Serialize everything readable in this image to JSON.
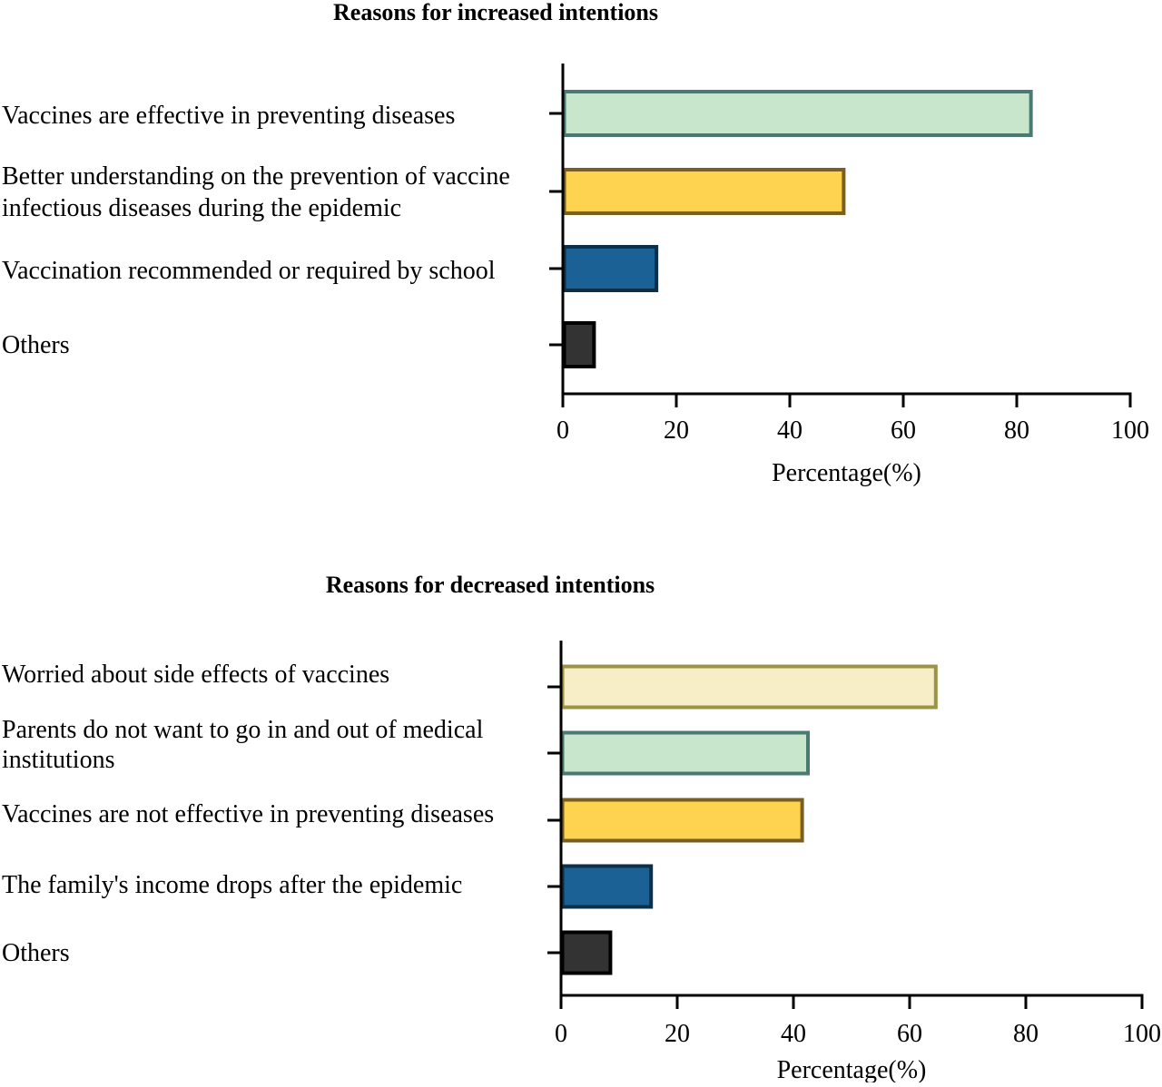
{
  "chart_data": [
    {
      "type": "bar",
      "orientation": "horizontal",
      "title": "Reasons for increased intentions",
      "xlabel": "Percentage(%)",
      "ylabel": "",
      "xlim": [
        0,
        100
      ],
      "xticks": [
        "0",
        "20",
        "40",
        "60",
        "80",
        "100"
      ],
      "categories": [
        [
          "Vaccines are effective in preventing diseases"
        ],
        [
          "Better understanding on the prevention of vaccine",
          "infectious diseases during the epidemic"
        ],
        [
          "Vaccination recommended or required by school"
        ],
        [
          "Others"
        ]
      ],
      "values": [
        82.5,
        49.5,
        16.5,
        5.5
      ],
      "colors": [
        {
          "fill": "#c8e6cb",
          "stroke": "#4b7a72"
        },
        {
          "fill": "#fdd34f",
          "stroke": "#7a5f22"
        },
        {
          "fill": "#1c6195",
          "stroke": "#0d2f47"
        },
        {
          "fill": "#333333",
          "stroke": "#000000"
        }
      ],
      "grid": false,
      "legend": "none"
    },
    {
      "type": "bar",
      "orientation": "horizontal",
      "title": "Reasons for decreased intentions",
      "xlabel": "Percentage(%)",
      "ylabel": "",
      "xlim": [
        0,
        100
      ],
      "xticks": [
        "0",
        "20",
        "40",
        "60",
        "80",
        "100"
      ],
      "categories": [
        [
          "Worried about side effects of vaccines"
        ],
        [
          "Parents do not want to go in and out of medical",
          "institutions"
        ],
        [
          "Vaccines are not effective in preventing diseases"
        ],
        [
          "The family's income drops after the epidemic"
        ],
        [
          "Others"
        ]
      ],
      "values": [
        64.5,
        42.5,
        41.5,
        15.5,
        8.5
      ],
      "colors": [
        {
          "fill": "#f7edc6",
          "stroke": "#9b9446"
        },
        {
          "fill": "#c8e6cb",
          "stroke": "#4b7a72"
        },
        {
          "fill": "#fdd34f",
          "stroke": "#7a5f22"
        },
        {
          "fill": "#1c6195",
          "stroke": "#0d2f47"
        },
        {
          "fill": "#333333",
          "stroke": "#000000"
        }
      ],
      "grid": false,
      "legend": "none"
    }
  ]
}
